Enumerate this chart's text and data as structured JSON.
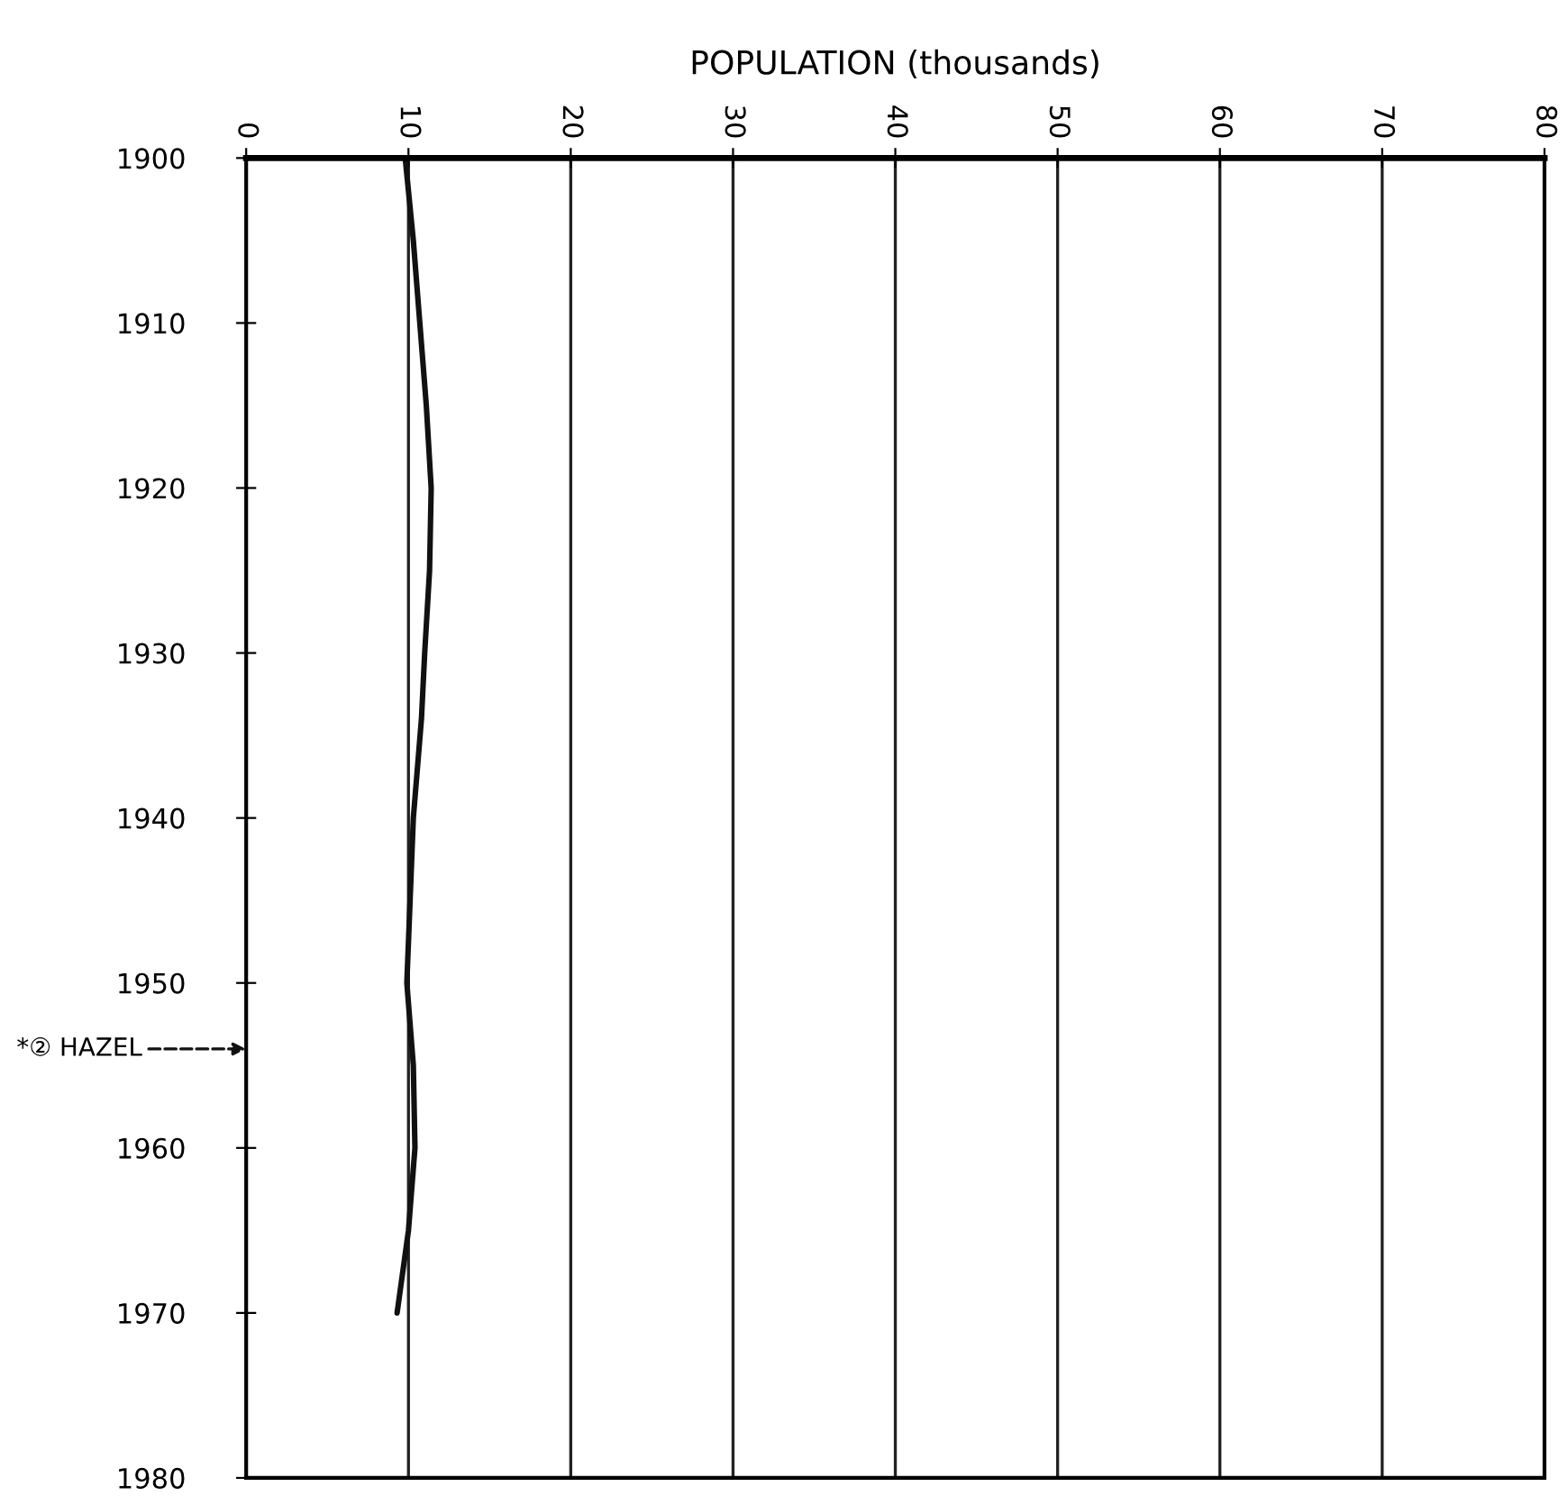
{
  "chart_data": {
    "type": "line",
    "orientation": "horizontal",
    "xlabel": "POPULATION (thousands)",
    "x": [
      1900,
      1905,
      1910,
      1915,
      1920,
      1925,
      1930,
      1934,
      1940,
      1945,
      1950,
      1955,
      1960,
      1965,
      1970
    ],
    "series": [
      {
        "color": "#111111",
        "values": [
          9.8,
          10.3,
          10.7,
          11.1,
          11.4,
          11.3,
          11.0,
          10.8,
          10.3,
          10.1,
          9.9,
          10.3,
          10.4,
          10.0,
          9.3
        ]
      }
    ],
    "xlim": [
      0,
      80
    ],
    "xticks": [
      0,
      10,
      20,
      30,
      40,
      50,
      60,
      70,
      80
    ],
    "ylim": [
      1980,
      1900
    ],
    "yticks": [
      1900,
      1910,
      1920,
      1930,
      1940,
      1950,
      1960,
      1970,
      1980
    ],
    "grid": "x",
    "marker": "none",
    "line_style": "solid",
    "annotations": [
      "*② HAZEL"
    ]
  }
}
